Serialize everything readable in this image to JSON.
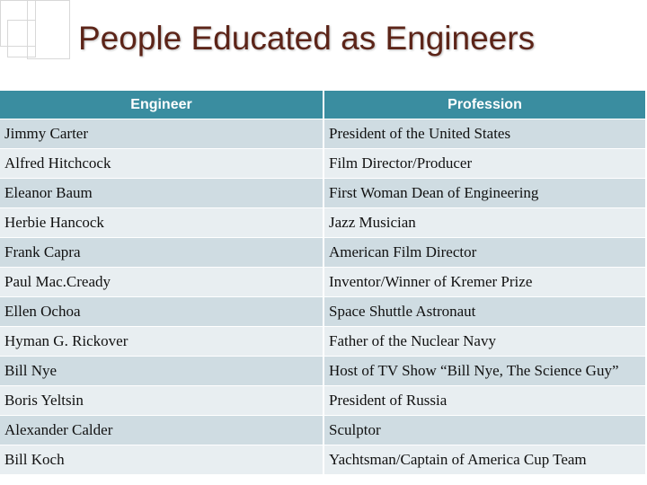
{
  "header": {
    "title": "People Educated as Engineers"
  },
  "table": {
    "columns": [
      "Engineer",
      "Profession"
    ],
    "rows": [
      [
        "Jimmy Carter",
        "President of the United States"
      ],
      [
        "Alfred Hitchcock",
        "Film Director/Producer"
      ],
      [
        "Eleanor Baum",
        "First Woman Dean of Engineering"
      ],
      [
        "Herbie Hancock",
        "Jazz Musician"
      ],
      [
        "Frank Capra",
        "American Film Director"
      ],
      [
        "Paul Mac.Cready",
        "Inventor/Winner of Kremer Prize"
      ],
      [
        "Ellen Ochoa",
        "Space Shuttle Astronaut"
      ],
      [
        "Hyman G. Rickover",
        "Father of the Nuclear Navy"
      ],
      [
        "Bill Nye",
        "Host of TV Show “Bill Nye, The Science Guy”"
      ],
      [
        "Boris Yeltsin",
        "President of Russia"
      ],
      [
        "Alexander Calder",
        "Sculptor"
      ],
      [
        "Bill Koch",
        "Yachtsman/Captain of America Cup Team"
      ]
    ]
  }
}
